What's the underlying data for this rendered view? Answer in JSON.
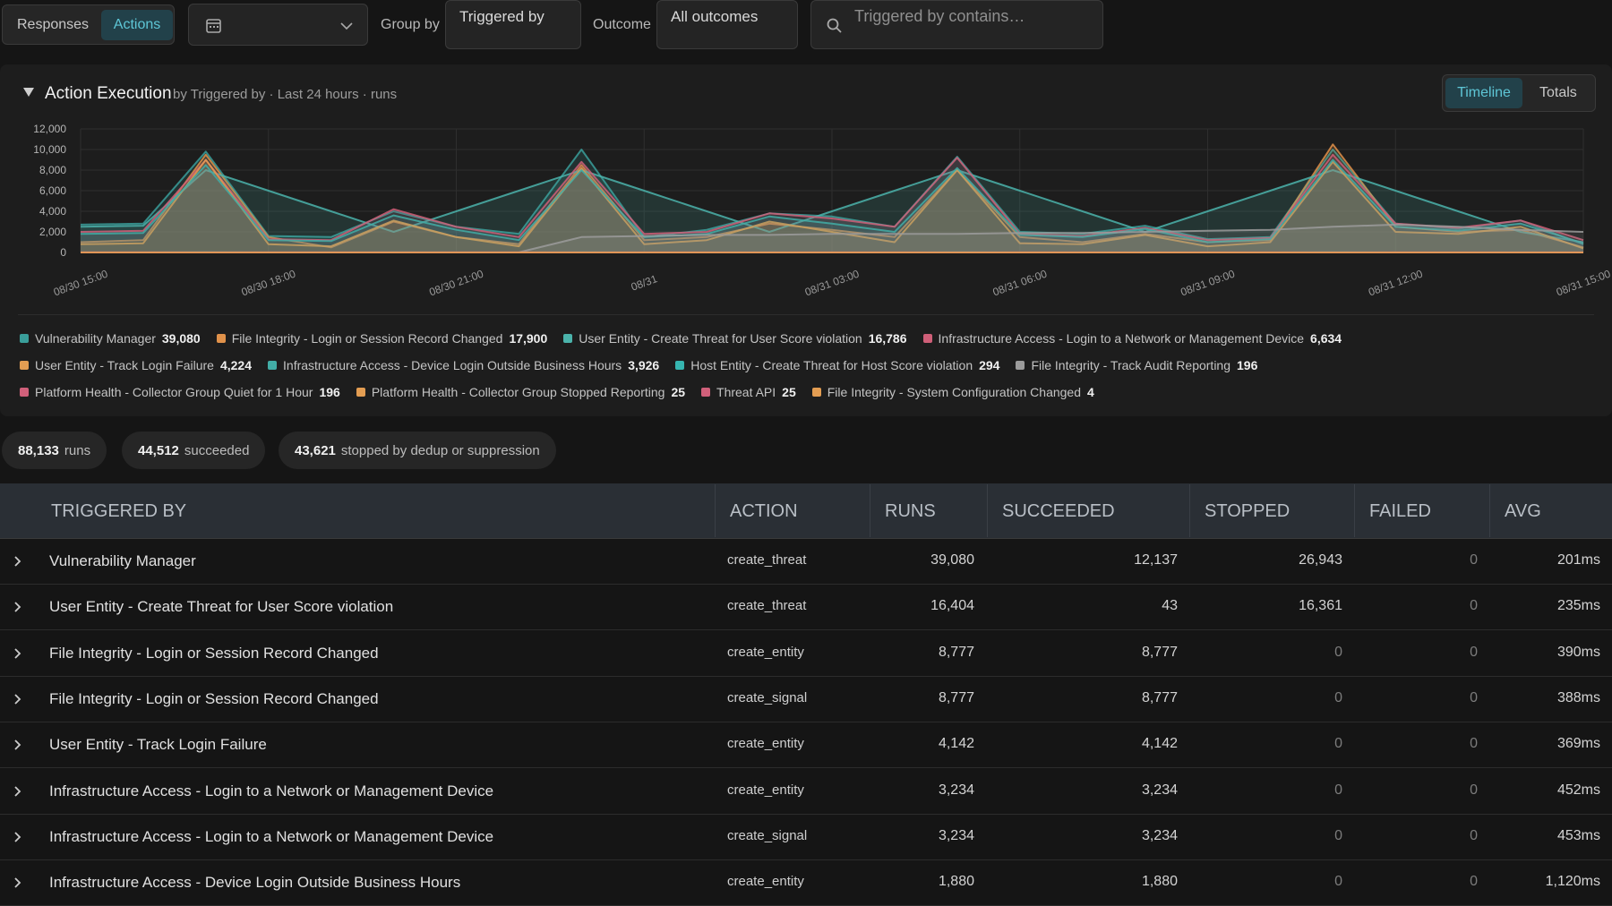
{
  "toolbar": {
    "tabs": [
      "Responses",
      "Actions"
    ],
    "group_by_label": "Group by",
    "group_by": "Triggered by",
    "outcome_label": "Outcome",
    "outcome": "All outcomes",
    "search_placeholder": "Triggered by contains…"
  },
  "panel": {
    "title": "Action Execution",
    "subtitle": "by Triggered by · Last 24 hours · runs",
    "views": [
      "Timeline",
      "Totals"
    ]
  },
  "chart_data": {
    "type": "area",
    "categories": [
      "08/30 15:00",
      null,
      null,
      "08/30 18:00",
      null,
      null,
      "08/30 21:00",
      null,
      null,
      "08/31",
      null,
      null,
      "08/31 03:00",
      null,
      null,
      "08/31 06:00",
      null,
      null,
      "08/31 09:00",
      null,
      null,
      "08/31 12:00",
      null,
      null,
      "08/31 15:00"
    ],
    "ylim": [
      0,
      12000
    ],
    "yticks": [
      0,
      {
        "value": 2000,
        "label": "2,000"
      },
      {
        "value": 4000,
        "label": "4,000"
      },
      {
        "value": 6000,
        "label": "6,000"
      },
      {
        "value": 8000,
        "label": "8,000"
      },
      {
        "value": 10000,
        "label": "10,000"
      },
      {
        "value": 12000,
        "label": "12,000"
      }
    ],
    "grid": true,
    "series": [
      {
        "name": "Vulnerability Manager",
        "total": "39,080",
        "color": "#3a9e9a",
        "values": [
          2700,
          2800,
          9800,
          1600,
          1500,
          4000,
          2500,
          1800,
          10000,
          1500,
          2200,
          3800,
          3500,
          2500,
          9300,
          2000,
          1800,
          2600,
          1300,
          1500,
          10000,
          2800,
          2300,
          3100,
          800
        ]
      },
      {
        "name": "File Integrity - Login or Session Record Changed",
        "total": "17,900",
        "color": "#e0914a",
        "values": [
          1000,
          1200,
          9500,
          1500,
          500,
          3000,
          1500,
          800,
          8500,
          1200,
          1500,
          2800,
          2200,
          1500,
          8000,
          1500,
          1000,
          1800,
          1000,
          1200,
          10500,
          2500,
          2000,
          2200,
          500
        ]
      },
      {
        "name": "User Entity - Create Threat for User Score violation",
        "total": "16,786",
        "color": "#4bb3ab",
        "values": [
          2500,
          2600,
          8000,
          6000,
          4000,
          2000,
          4000,
          6000,
          8000,
          6000,
          4000,
          2000,
          4000,
          6000,
          8000,
          6000,
          4000,
          2000,
          4000,
          6000,
          8000,
          6000,
          4000,
          2000,
          1000
        ]
      },
      {
        "name": "Infrastructure Access - Login to a Network or Management Device",
        "total": "6,634",
        "color": "#cf5f78",
        "values": [
          2000,
          2100,
          9000,
          1300,
          1200,
          4200,
          2500,
          1500,
          8800,
          1800,
          2000,
          3800,
          3300,
          2500,
          9200,
          1800,
          1600,
          2400,
          1200,
          1400,
          9500,
          2800,
          2400,
          3100,
          1200
        ]
      },
      {
        "name": "User Entity - Track Login Failure",
        "total": "4,224",
        "color": "#e39d52",
        "values": [
          800,
          900,
          9000,
          800,
          600,
          3100,
          1500,
          600,
          8200,
          800,
          1200,
          3000,
          2000,
          1000,
          8000,
          900,
          800,
          1700,
          600,
          1000,
          8800,
          2000,
          1800,
          2500,
          400
        ]
      },
      {
        "name": "Infrastructure Access - Device Login Outside Business Hours",
        "total": "3,926",
        "color": "#42ada6",
        "values": [
          1800,
          1900,
          8500,
          1200,
          1100,
          3600,
          2200,
          1200,
          8000,
          1500,
          1800,
          3500,
          2800,
          2000,
          8200,
          1700,
          1500,
          2300,
          1000,
          1300,
          9000,
          2500,
          2100,
          2800,
          900
        ]
      },
      {
        "name": "Host Entity - Create Threat for Host Score violation",
        "total": "294",
        "color": "#36b5b0",
        "values": [
          0,
          0,
          20,
          0,
          0,
          10,
          0,
          0,
          20,
          0,
          0,
          10,
          0,
          0,
          20,
          0,
          0,
          10,
          0,
          0,
          20,
          0,
          0,
          10,
          0
        ]
      },
      {
        "name": "File Integrity - Track Audit Reporting",
        "total": "196",
        "color": "#9b9b9b",
        "values": [
          10,
          10,
          10,
          10,
          10,
          10,
          10,
          10,
          1500,
          1600,
          1700,
          1700,
          1800,
          1800,
          1800,
          1900,
          1900,
          2000,
          2100,
          2200,
          2500,
          2700,
          2500,
          2200,
          2000
        ]
      },
      {
        "name": "Platform Health - Collector Group Quiet for 1 Hour",
        "total": "196",
        "color": "#d0607a",
        "values": [
          8,
          8,
          8,
          8,
          8,
          8,
          8,
          8,
          8,
          8,
          8,
          8,
          8,
          8,
          8,
          8,
          8,
          8,
          8,
          8,
          8,
          8,
          8,
          8,
          8
        ]
      },
      {
        "name": "Platform Health - Collector Group Stopped Reporting",
        "total": "25",
        "color": "#e39d52",
        "values": [
          1,
          1,
          1,
          1,
          1,
          1,
          1,
          1,
          1,
          1,
          1,
          1,
          1,
          1,
          1,
          1,
          1,
          1,
          1,
          1,
          1,
          1,
          1,
          1,
          1
        ]
      },
      {
        "name": "Threat API",
        "total": "25",
        "color": "#d0607a",
        "values": [
          1,
          1,
          1,
          1,
          1,
          1,
          1,
          1,
          1,
          1,
          1,
          1,
          1,
          1,
          1,
          1,
          1,
          1,
          1,
          1,
          1,
          1,
          1,
          1,
          1
        ]
      },
      {
        "name": "File Integrity - System Configuration Changed",
        "total": "4",
        "color": "#e39d52",
        "values": [
          0,
          0,
          0,
          0,
          0,
          0,
          0,
          0,
          0,
          0,
          0,
          0,
          0,
          0,
          0,
          0,
          0,
          0,
          0,
          0,
          0,
          0,
          0,
          0,
          4
        ]
      }
    ]
  },
  "summary": [
    {
      "value": "88,133",
      "label": "runs"
    },
    {
      "value": "44,512",
      "label": "succeeded"
    },
    {
      "value": "43,621",
      "label": "stopped by dedup or suppression"
    }
  ],
  "table": {
    "columns": [
      "TRIGGERED BY",
      "ACTION",
      "RUNS",
      "SUCCEEDED",
      "STOPPED",
      "FAILED",
      "AVG"
    ],
    "rows": [
      [
        "Vulnerability Manager",
        "create_threat",
        "39,080",
        "12,137",
        "26,943",
        "0",
        "201ms"
      ],
      [
        "User Entity - Create Threat for User Score violation",
        "create_threat",
        "16,404",
        "43",
        "16,361",
        "0",
        "235ms"
      ],
      [
        "File Integrity - Login or Session Record Changed",
        "create_entity",
        "8,777",
        "8,777",
        "0",
        "0",
        "390ms"
      ],
      [
        "File Integrity - Login or Session Record Changed",
        "create_signal",
        "8,777",
        "8,777",
        "0",
        "0",
        "388ms"
      ],
      [
        "User Entity - Track Login Failure",
        "create_entity",
        "4,142",
        "4,142",
        "0",
        "0",
        "369ms"
      ],
      [
        "Infrastructure Access - Login to a Network or Management Device",
        "create_entity",
        "3,234",
        "3,234",
        "0",
        "0",
        "452ms"
      ],
      [
        "Infrastructure Access - Login to a Network or Management Device",
        "create_signal",
        "3,234",
        "3,234",
        "0",
        "0",
        "453ms"
      ],
      [
        "Infrastructure Access - Device Login Outside Business Hours",
        "create_entity",
        "1,880",
        "1,880",
        "0",
        "0",
        "1,120ms"
      ]
    ]
  }
}
